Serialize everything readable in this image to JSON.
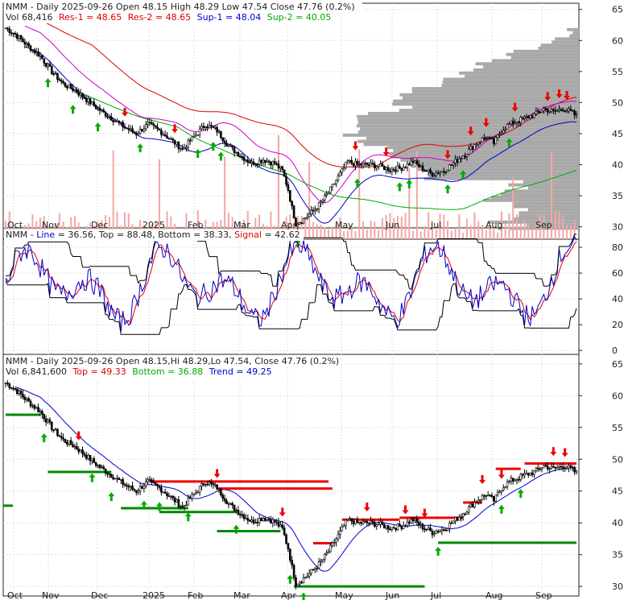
{
  "colors": {
    "background": "#ffffff",
    "panel_border": "#222222",
    "grid": "#c8c8c8",
    "candle": "#000000",
    "volume_bar": "#f4a6a6",
    "volume_profile": "#a9a9a9",
    "resistance": "#dd0000",
    "res2": "#cc00cc",
    "support": "#0000cc",
    "sup2": "#00aa00",
    "up_arrow": "#00aa00",
    "down_arrow": "#ee0000",
    "stoch_line": "#0000cc",
    "stoch_signal": "#dd0000",
    "stoch_band": "#000000",
    "trend_up": "#008800",
    "trend_down": "#ee0000"
  },
  "header1": {
    "line1": "NMM - Daily 2025-09-26 Open 48.15  High 48.29  Low 47.54  Close 47.76 (0.2%)",
    "vol": "Vol 68,416",
    "res1": "Res-1 = 48.65",
    "res2": "Res-2 = 48.65",
    "sup1": "Sup-1 = 48.04",
    "sup2": "Sup-2 = 40.05"
  },
  "header2": {
    "line_prefix": "NMM - ",
    "line_label": "Line",
    "line_value": " = 36.56, ",
    "top_label": "Top",
    "top_value": " = 88.48, ",
    "bottom_label": "Bottom",
    "bottom_value": " = 38.33, ",
    "signal_label": "Signal",
    "signal_value": " = 42.62"
  },
  "header3": {
    "line1": "NMM - Daily 2025-09-26 Open 48.15,Hi 48.29,Lo 47.54, Close 47.76 (0.2%)",
    "vol": "Vol 6,841,600",
    "top": "Top = 49.33",
    "bottom": "Bottom = 36.88",
    "trend": "Trend = 49.25"
  },
  "x_labels": [
    "Oct",
    "Nov",
    "Dec",
    "2025",
    "Feb",
    "Mar",
    "Apr",
    "May",
    "Jun",
    "Jul",
    "Aug",
    "Sep"
  ],
  "panel1_yticks": [
    30,
    35,
    40,
    45,
    50,
    55,
    60,
    65
  ],
  "panel2_yticks": [
    0,
    20,
    40,
    60,
    80
  ],
  "panel3_yticks": [
    30,
    35,
    40,
    45,
    50,
    55,
    60,
    65
  ],
  "chart_data": {
    "type": "candlestick",
    "title": "NMM - Daily 2025-09-26",
    "ylim": [
      28,
      66
    ],
    "price_points": [
      [
        0,
        62
      ],
      [
        5,
        61
      ],
      [
        12,
        59
      ],
      [
        18,
        57.5
      ],
      [
        24,
        55
      ],
      [
        30,
        53
      ],
      [
        36,
        52
      ],
      [
        42,
        50.5
      ],
      [
        48,
        49
      ],
      [
        55,
        47.5
      ],
      [
        62,
        46
      ],
      [
        68,
        45
      ],
      [
        74,
        46.5
      ],
      [
        80,
        45.5
      ],
      [
        86,
        44
      ],
      [
        92,
        42.5
      ],
      [
        98,
        44.5
      ],
      [
        104,
        46.5
      ],
      [
        110,
        45.5
      ],
      [
        116,
        43
      ],
      [
        122,
        41.5
      ],
      [
        128,
        40.2
      ],
      [
        134,
        40.8
      ],
      [
        140,
        40.2
      ],
      [
        144,
        39
      ],
      [
        147,
        36
      ],
      [
        149,
        33
      ],
      [
        151,
        30.5
      ],
      [
        154,
        31
      ],
      [
        158,
        32
      ],
      [
        163,
        33.5
      ],
      [
        168,
        35.5
      ],
      [
        173,
        38
      ],
      [
        178,
        40.5
      ],
      [
        183,
        40
      ],
      [
        188,
        40
      ],
      [
        194,
        39.8
      ],
      [
        200,
        39.2
      ],
      [
        206,
        39.5
      ],
      [
        212,
        40.5
      ],
      [
        216,
        39.5
      ],
      [
        222,
        38.5
      ],
      [
        228,
        39
      ],
      [
        234,
        40.5
      ],
      [
        240,
        42
      ],
      [
        245,
        43.5
      ],
      [
        250,
        44.5
      ],
      [
        254,
        43.5
      ],
      [
        258,
        45.5
      ],
      [
        262,
        46.5
      ],
      [
        266,
        47
      ],
      [
        270,
        47.5
      ],
      [
        275,
        48
      ],
      [
        280,
        49
      ],
      [
        285,
        48.5
      ],
      [
        290,
        49
      ],
      [
        294,
        48.5
      ],
      [
        297,
        47.8
      ]
    ],
    "annotations": {
      "res1": 48.65,
      "res2": 48.65,
      "sup1": 48.04,
      "sup2": 40.05,
      "stoch_line": 36.56,
      "stoch_top": 88.48,
      "stoch_bottom": 38.33,
      "stoch_signal": 42.62,
      "trend_top": 49.33,
      "trend_bottom": 36.88,
      "trend": 49.25
    }
  }
}
